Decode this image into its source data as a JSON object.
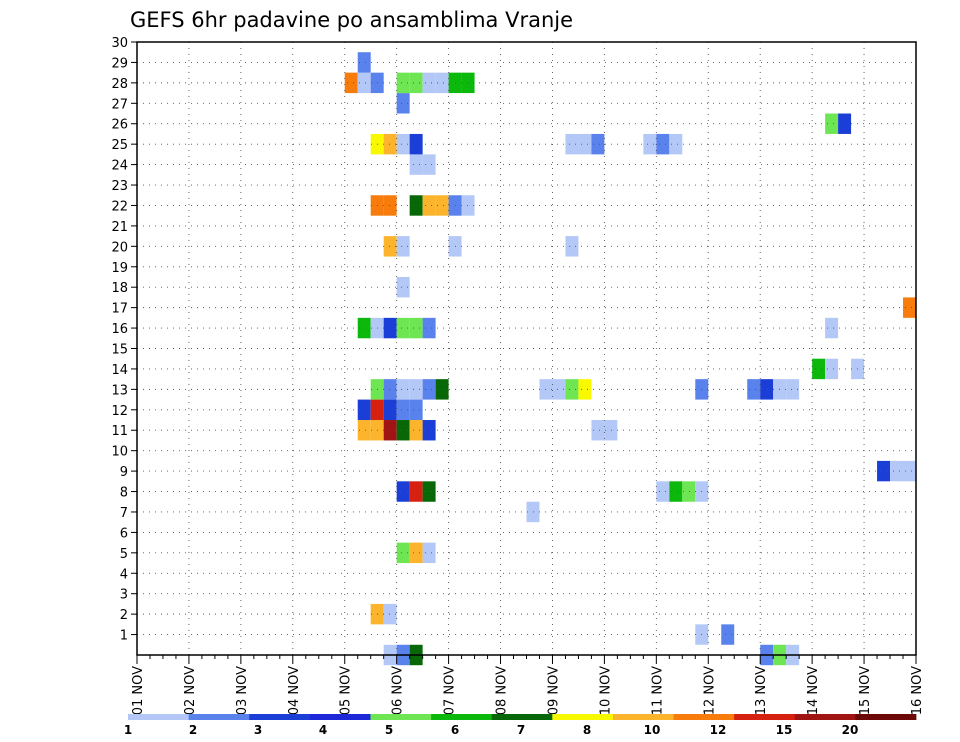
{
  "chart_data": {
    "type": "heatmap",
    "title": "GEFS 6hr padavine po ansamblima Vranje",
    "xlabel": "",
    "ylabel": "",
    "x_tick_labels": [
      "01 NOV",
      "02 NOV",
      "03 NOV",
      "04 NOV",
      "05 NOV",
      "06 NOV",
      "07 NOV",
      "08 NOV",
      "09 NOV",
      "10 NOV",
      "11 NOV",
      "12 NOV",
      "13 NOV",
      "14 NOV",
      "15 NOV",
      "16 NOV"
    ],
    "y_tick_labels": [
      "1",
      "2",
      "3",
      "4",
      "5",
      "6",
      "7",
      "8",
      "9",
      "10",
      "11",
      "12",
      "13",
      "14",
      "15",
      "16",
      "17",
      "18",
      "19",
      "20",
      "21",
      "22",
      "23",
      "24",
      "25",
      "26",
      "27",
      "28",
      "29",
      "30"
    ],
    "x_unit": "6-hour step from 01 NOV 00Z",
    "xlim": [
      0,
      60
    ],
    "ylim": [
      0,
      30
    ],
    "grid": true,
    "legend_position": "bottom",
    "legend": {
      "labels": [
        "1",
        "2",
        "3",
        "4",
        "5",
        "6",
        "7",
        "8",
        "10",
        "12",
        "15",
        "20"
      ],
      "colors": [
        "#b4c8f8",
        "#5a82ec",
        "#1a3ed6",
        "#1c28d8",
        "#6ee654",
        "#0cb80c",
        "#086808",
        "#f8f800",
        "#fcb42c",
        "#f87c0c",
        "#d62010",
        "#a01414",
        "#6c0808"
      ]
    },
    "cells": [
      [
        19,
        0,
        "#b4c8f8"
      ],
      [
        20,
        0,
        "#5a82ec"
      ],
      [
        21,
        0,
        "#086808"
      ],
      [
        48,
        0,
        "#5a82ec"
      ],
      [
        49,
        0,
        "#6ee654"
      ],
      [
        50,
        0,
        "#b4c8f8"
      ],
      [
        43,
        1,
        "#b4c8f8"
      ],
      [
        45,
        1,
        "#5a82ec"
      ],
      [
        18,
        2,
        "#fcb42c"
      ],
      [
        19,
        2,
        "#b4c8f8"
      ],
      [
        20,
        5,
        "#6ee654"
      ],
      [
        21,
        5,
        "#fcb42c"
      ],
      [
        22,
        5,
        "#b4c8f8"
      ],
      [
        30,
        7,
        "#b4c8f8"
      ],
      [
        20,
        8,
        "#1a3ed6"
      ],
      [
        21,
        8,
        "#d62010"
      ],
      [
        22,
        8,
        "#086808"
      ],
      [
        40,
        8,
        "#b4c8f8"
      ],
      [
        41,
        8,
        "#0cb80c"
      ],
      [
        42,
        8,
        "#6ee654"
      ],
      [
        43,
        8,
        "#b4c8f8"
      ],
      [
        57,
        9,
        "#1a3ed6"
      ],
      [
        58,
        9,
        "#b4c8f8"
      ],
      [
        59,
        9,
        "#b4c8f8"
      ],
      [
        35,
        11,
        "#b4c8f8"
      ],
      [
        36,
        11,
        "#b4c8f8"
      ],
      [
        17,
        11,
        "#fcb42c"
      ],
      [
        18,
        11,
        "#fcb42c"
      ],
      [
        19,
        11,
        "#a01414"
      ],
      [
        20,
        11,
        "#086808"
      ],
      [
        21,
        11,
        "#fcb42c"
      ],
      [
        22,
        11,
        "#1a3ed6"
      ],
      [
        17,
        12,
        "#1a3ed6"
      ],
      [
        18,
        12,
        "#d62010"
      ],
      [
        19,
        12,
        "#1a3ed6"
      ],
      [
        20,
        12,
        "#5a82ec"
      ],
      [
        21,
        12,
        "#5a82ec"
      ],
      [
        18,
        13,
        "#6ee654"
      ],
      [
        19,
        13,
        "#5a82ec"
      ],
      [
        20,
        13,
        "#b4c8f8"
      ],
      [
        21,
        13,
        "#b4c8f8"
      ],
      [
        22,
        13,
        "#5a82ec"
      ],
      [
        23,
        13,
        "#086808"
      ],
      [
        31,
        13,
        "#b4c8f8"
      ],
      [
        32,
        13,
        "#b4c8f8"
      ],
      [
        33,
        13,
        "#6ee654"
      ],
      [
        34,
        13,
        "#f8f800"
      ],
      [
        43,
        13,
        "#5a82ec"
      ],
      [
        47,
        13,
        "#5a82ec"
      ],
      [
        48,
        13,
        "#1a3ed6"
      ],
      [
        49,
        13,
        "#b4c8f8"
      ],
      [
        50,
        13,
        "#b4c8f8"
      ],
      [
        52,
        14,
        "#0cb80c"
      ],
      [
        53,
        14,
        "#b4c8f8"
      ],
      [
        55,
        14,
        "#b4c8f8"
      ],
      [
        17,
        16,
        "#0cb80c"
      ],
      [
        18,
        16,
        "#b4c8f8"
      ],
      [
        19,
        16,
        "#1a3ed6"
      ],
      [
        20,
        16,
        "#6ee654"
      ],
      [
        21,
        16,
        "#6ee654"
      ],
      [
        22,
        16,
        "#5a82ec"
      ],
      [
        53,
        16,
        "#b4c8f8"
      ],
      [
        59,
        17,
        "#f87c0c"
      ],
      [
        20,
        18,
        "#b4c8f8"
      ],
      [
        19,
        20,
        "#fcb42c"
      ],
      [
        20,
        20,
        "#b4c8f8"
      ],
      [
        24,
        20,
        "#b4c8f8"
      ],
      [
        33,
        20,
        "#b4c8f8"
      ],
      [
        18,
        22,
        "#f87c0c"
      ],
      [
        19,
        22,
        "#f87c0c"
      ],
      [
        21,
        22,
        "#086808"
      ],
      [
        22,
        22,
        "#fcb42c"
      ],
      [
        23,
        22,
        "#fcb42c"
      ],
      [
        24,
        22,
        "#5a82ec"
      ],
      [
        25,
        22,
        "#b4c8f8"
      ],
      [
        21,
        24,
        "#b4c8f8"
      ],
      [
        22,
        24,
        "#b4c8f8"
      ],
      [
        18,
        25,
        "#f8f800"
      ],
      [
        19,
        25,
        "#fcb42c"
      ],
      [
        20,
        25,
        "#b4c8f8"
      ],
      [
        21,
        25,
        "#1a3ed6"
      ],
      [
        33,
        25,
        "#b4c8f8"
      ],
      [
        34,
        25,
        "#b4c8f8"
      ],
      [
        35,
        25,
        "#5a82ec"
      ],
      [
        39,
        25,
        "#b4c8f8"
      ],
      [
        40,
        25,
        "#5a82ec"
      ],
      [
        41,
        25,
        "#b4c8f8"
      ],
      [
        53,
        26,
        "#6ee654"
      ],
      [
        54,
        26,
        "#1a3ed6"
      ],
      [
        20,
        27,
        "#5a82ec"
      ],
      [
        16,
        28,
        "#f87c0c"
      ],
      [
        17,
        28,
        "#b4c8f8"
      ],
      [
        18,
        28,
        "#5a82ec"
      ],
      [
        20,
        28,
        "#6ee654"
      ],
      [
        21,
        28,
        "#6ee654"
      ],
      [
        22,
        28,
        "#b4c8f8"
      ],
      [
        23,
        28,
        "#b4c8f8"
      ],
      [
        24,
        28,
        "#0cb80c"
      ],
      [
        25,
        28,
        "#0cb80c"
      ],
      [
        17,
        29,
        "#5a82ec"
      ]
    ]
  }
}
